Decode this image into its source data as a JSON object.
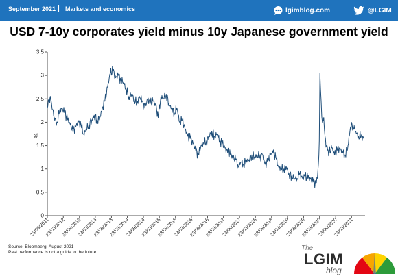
{
  "header": {
    "date": "September 2021",
    "separator": "|",
    "section": "Markets and economics",
    "website": "lgimblog.com",
    "twitter": "@LGIM"
  },
  "chart_data": {
    "type": "line",
    "title": "USD 7-10y corporates yield minus 10y Japanese government yield",
    "ylabel": "%",
    "xlabel": "",
    "ylim": [
      0,
      3.5
    ],
    "y_ticks": [
      "0",
      "0.5",
      "1",
      "1.5",
      "2",
      "2.5",
      "3",
      "3.5"
    ],
    "x_tick_labels": [
      "23/09/2011",
      "23/03/2012",
      "23/09/2012",
      "23/03/2013",
      "23/09/2013",
      "23/03/2014",
      "23/09/2014",
      "23/03/2015",
      "23/09/2015",
      "23/03/2016",
      "23/09/2016",
      "23/03/2017",
      "23/09/2017",
      "23/03/2018",
      "23/09/2018",
      "23/03/2019",
      "23/09/2019",
      "23/03/2020",
      "23/09/2020",
      "23/03/2021"
    ],
    "line_color": "#1f4e79",
    "grid": false,
    "legend": "none",
    "series": [
      {
        "x": [
          "2011-09-23",
          "2011-10-15",
          "2011-11-10",
          "2011-12-10",
          "2012-01-10",
          "2012-02-10",
          "2012-03-10",
          "2012-04-10",
          "2012-05-10",
          "2012-06-10",
          "2012-07-10",
          "2012-08-10",
          "2012-09-10",
          "2012-10-10",
          "2012-11-10",
          "2012-12-10",
          "2013-01-10",
          "2013-02-10",
          "2013-03-10",
          "2013-04-10",
          "2013-05-10",
          "2013-06-10",
          "2013-07-10",
          "2013-08-10",
          "2013-09-10",
          "2013-10-10",
          "2013-11-10",
          "2013-12-10",
          "2014-01-10",
          "2014-02-10",
          "2014-03-10",
          "2014-04-10",
          "2014-05-10",
          "2014-06-10",
          "2014-07-10",
          "2014-08-10",
          "2014-09-10",
          "2014-10-10",
          "2014-11-10",
          "2014-12-10",
          "2015-01-10",
          "2015-02-10",
          "2015-03-10",
          "2015-04-10",
          "2015-05-10",
          "2015-06-10",
          "2015-07-10",
          "2015-08-10",
          "2015-09-10",
          "2015-10-10",
          "2015-11-10",
          "2015-12-10",
          "2016-01-10",
          "2016-02-10",
          "2016-03-10",
          "2016-04-10",
          "2016-05-10",
          "2016-06-10",
          "2016-07-10",
          "2016-08-10",
          "2016-09-10",
          "2016-10-10",
          "2016-11-10",
          "2016-12-10",
          "2017-01-10",
          "2017-02-10",
          "2017-03-10",
          "2017-04-10",
          "2017-05-10",
          "2017-06-10",
          "2017-07-10",
          "2017-08-10",
          "2017-09-10",
          "2017-10-10",
          "2017-11-10",
          "2017-12-10",
          "2018-01-10",
          "2018-02-10",
          "2018-03-10",
          "2018-04-10",
          "2018-05-10",
          "2018-06-10",
          "2018-07-10",
          "2018-08-10",
          "2018-09-10",
          "2018-10-10",
          "2018-11-10",
          "2018-12-10",
          "2019-01-10",
          "2019-02-10",
          "2019-03-10",
          "2019-04-10",
          "2019-05-10",
          "2019-06-10",
          "2019-07-10",
          "2019-08-10",
          "2019-09-10",
          "2019-10-10",
          "2019-11-10",
          "2019-12-10",
          "2020-01-10",
          "2020-02-10",
          "2020-02-28",
          "2020-03-10",
          "2020-03-20",
          "2020-03-27",
          "2020-04-10",
          "2020-04-24",
          "2020-05-10",
          "2020-05-24",
          "2020-06-10",
          "2020-06-24",
          "2020-07-10",
          "2020-08-10",
          "2020-09-10",
          "2020-10-10",
          "2020-11-10",
          "2020-12-10",
          "2021-01-10",
          "2021-02-10",
          "2021-03-10",
          "2021-04-10",
          "2021-05-10",
          "2021-06-10",
          "2021-07-10",
          "2021-08-10"
        ],
        "y": [
          2.3,
          2.55,
          2.4,
          2.1,
          2.0,
          2.25,
          2.3,
          2.2,
          2.05,
          1.95,
          1.8,
          1.9,
          2.0,
          1.95,
          1.75,
          1.85,
          1.95,
          2.05,
          2.15,
          2.05,
          2.05,
          2.3,
          2.45,
          2.75,
          3.05,
          3.1,
          2.95,
          3.0,
          2.9,
          2.85,
          2.7,
          2.55,
          2.6,
          2.5,
          2.4,
          2.55,
          2.45,
          2.3,
          2.5,
          2.4,
          2.45,
          2.35,
          2.1,
          2.55,
          2.5,
          2.6,
          2.4,
          2.3,
          2.2,
          2.3,
          2.0,
          2.05,
          1.85,
          1.7,
          1.65,
          1.55,
          1.4,
          1.3,
          1.5,
          1.55,
          1.6,
          1.7,
          1.8,
          1.7,
          1.75,
          1.6,
          1.55,
          1.45,
          1.35,
          1.3,
          1.25,
          1.2,
          1.05,
          1.15,
          1.1,
          1.2,
          1.2,
          1.3,
          1.25,
          1.3,
          1.25,
          1.3,
          1.1,
          1.15,
          1.3,
          1.35,
          1.25,
          1.05,
          1.0,
          1.0,
          1.05,
          0.9,
          0.85,
          0.8,
          0.8,
          0.9,
          0.8,
          0.85,
          0.8,
          0.78,
          0.72,
          0.7,
          0.8,
          1.1,
          1.6,
          3.05,
          2.45,
          2.0,
          2.1,
          1.7,
          1.5,
          1.4,
          1.35,
          1.45,
          1.3,
          1.4,
          1.45,
          1.35,
          1.3,
          1.5,
          1.9,
          1.95,
          1.8,
          1.7,
          1.7,
          1.65
        ]
      }
    ]
  },
  "footer": {
    "source": "Source: Bloomberg, August 2021",
    "disclaimer": "Past performance is not a guide to the future."
  },
  "logo": {
    "the": "The",
    "name": "LGIM",
    "blog": "blog"
  }
}
